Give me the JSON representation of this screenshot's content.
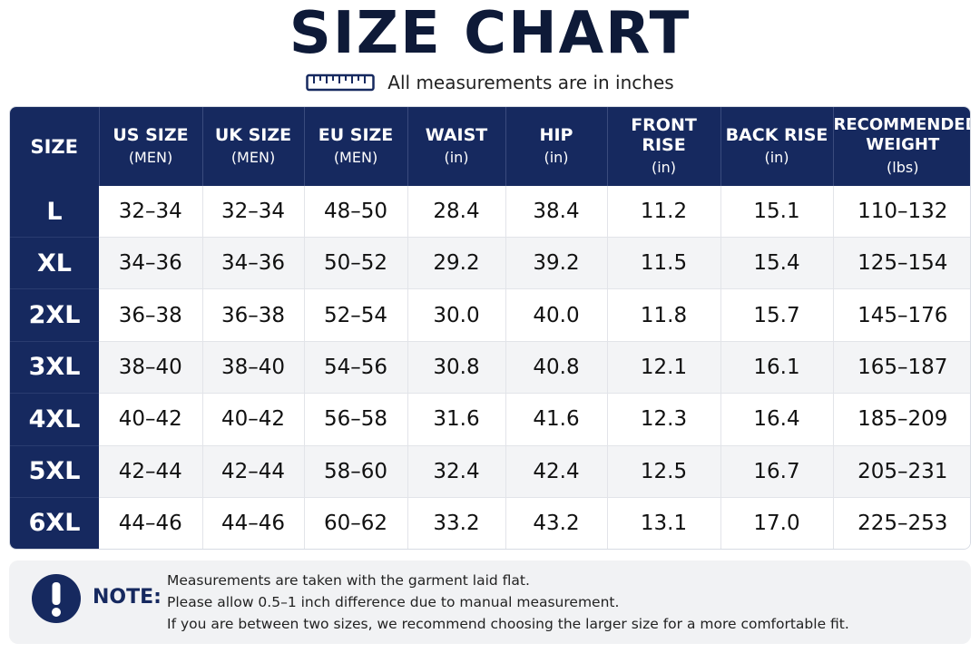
{
  "title": "SIZE CHART",
  "subtitle": "All measurements are in inches",
  "icons": {
    "subtitle_icon": "ruler-icon",
    "note_icon": "exclamation-circle-icon"
  },
  "colors": {
    "header_bg": "#16295f",
    "title": "#0e1a38",
    "row_alt": "#f3f4f6",
    "note_bg": "#f1f2f4"
  },
  "table": {
    "headers": [
      {
        "label": "SIZE",
        "sub": ""
      },
      {
        "label": "US SIZE",
        "sub": "(MEN)"
      },
      {
        "label": "UK SIZE",
        "sub": "(MEN)"
      },
      {
        "label": "EU SIZE",
        "sub": "(MEN)"
      },
      {
        "label": "WAIST",
        "sub": "(in)"
      },
      {
        "label": "HIP",
        "sub": "(in)"
      },
      {
        "label": "FRONT RISE",
        "sub": "(in)"
      },
      {
        "label": "BACK RISE",
        "sub": "(in)"
      },
      {
        "label": "RECOMMENDED WEIGHT",
        "sub": "(lbs)"
      }
    ],
    "rows": [
      [
        "L",
        "32–34",
        "32–34",
        "48–50",
        "28.4",
        "38.4",
        "11.2",
        "15.1",
        "110–132"
      ],
      [
        "XL",
        "34–36",
        "34–36",
        "50–52",
        "29.2",
        "39.2",
        "11.5",
        "15.4",
        "125–154"
      ],
      [
        "2XL",
        "36–38",
        "36–38",
        "52–54",
        "30.0",
        "40.0",
        "11.8",
        "15.7",
        "145–176"
      ],
      [
        "3XL",
        "38–40",
        "38–40",
        "54–56",
        "30.8",
        "40.8",
        "12.1",
        "16.1",
        "165–187"
      ],
      [
        "4XL",
        "40–42",
        "40–42",
        "56–58",
        "31.6",
        "41.6",
        "12.3",
        "16.4",
        "185–209"
      ],
      [
        "5XL",
        "42–44",
        "42–44",
        "58–60",
        "32.4",
        "42.4",
        "12.5",
        "16.7",
        "205–231"
      ],
      [
        "6XL",
        "44–46",
        "44–46",
        "60–62",
        "33.2",
        "43.2",
        "13.1",
        "17.0",
        "225–253"
      ]
    ]
  },
  "note": {
    "label": "NOTE:",
    "lines": [
      "Measurements are taken with the garment laid flat.",
      "Please allow 0.5–1 inch difference due to manual measurement.",
      "If you are between two sizes, we recommend choosing the larger size for a more comfortable fit."
    ]
  }
}
